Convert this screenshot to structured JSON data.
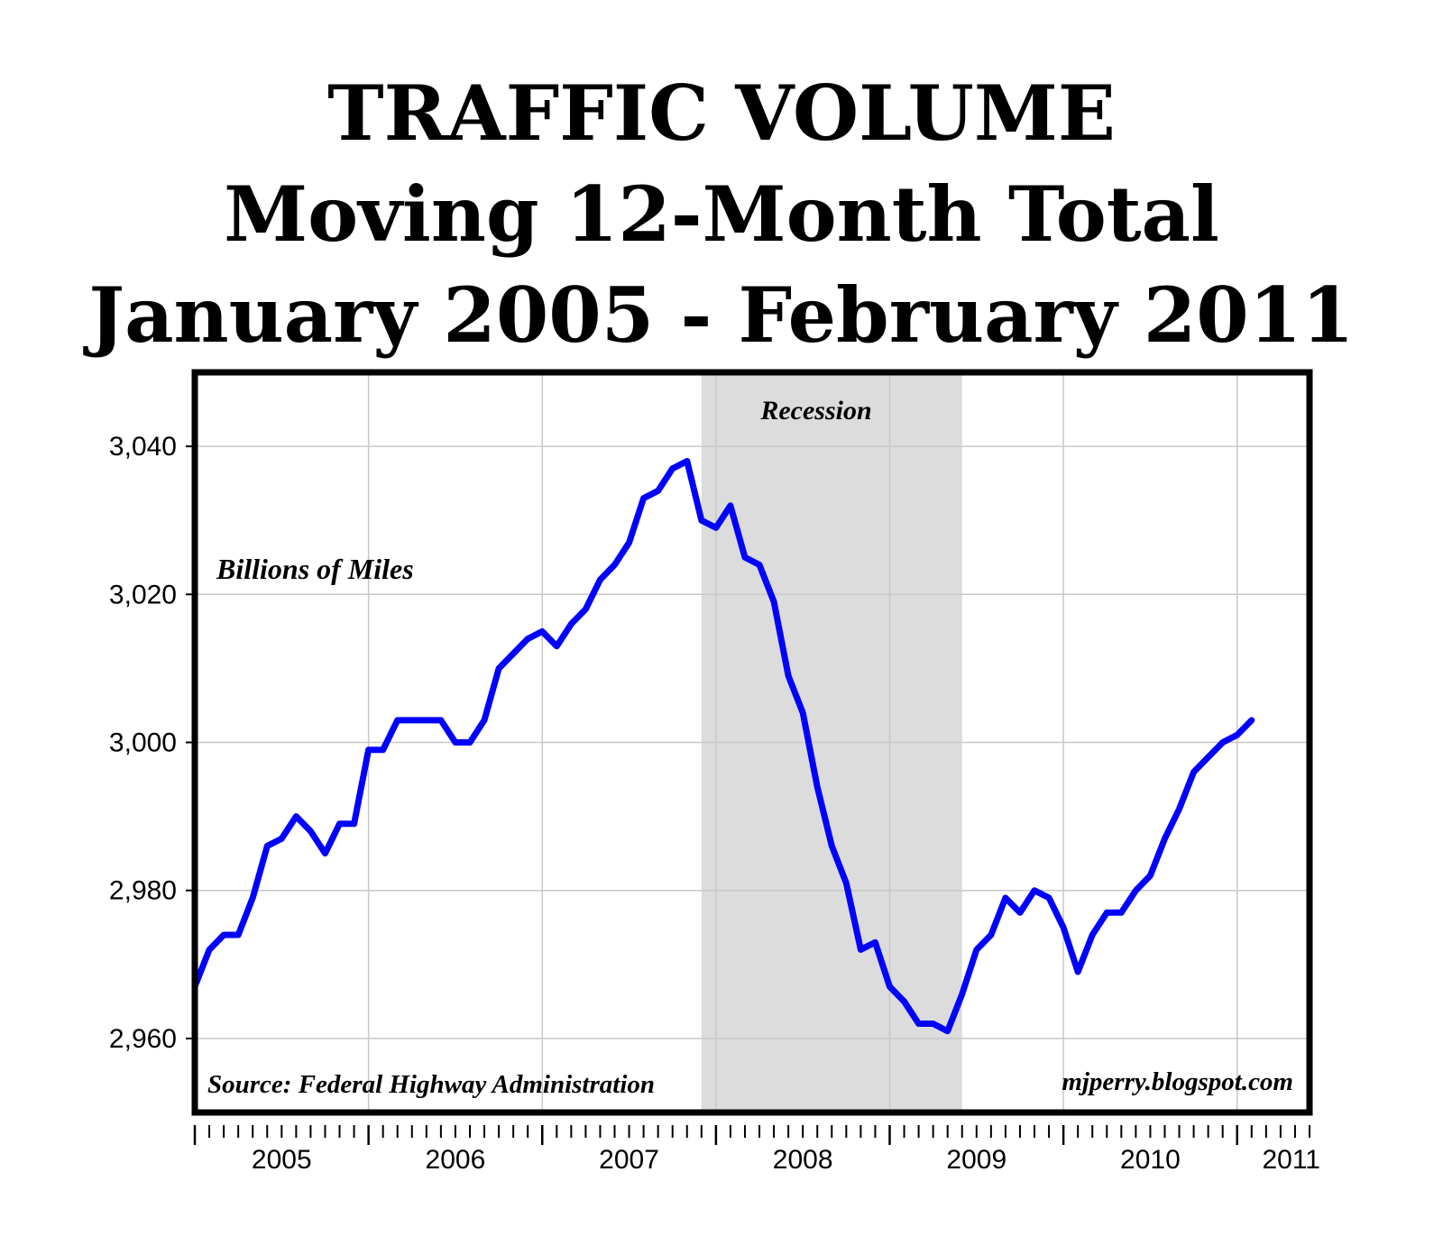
{
  "title_lines": [
    "TRAFFIC  VOLUME",
    "Moving 12-Month Total",
    "January 2005 - February 2011"
  ],
  "annotations": {
    "units": "Billions of Miles",
    "shaded_region_label": "Recession",
    "source": "Source: Federal Highway Administration",
    "credit": "mjperry.blogspot.com"
  },
  "chart_data": {
    "type": "line",
    "title": "TRAFFIC  VOLUME Moving 12-Month Total January 2005 - February 2011",
    "ylabel": "Billions of Miles",
    "xlabel": "",
    "ylim": [
      2950,
      3050
    ],
    "yticks": [
      2960,
      2980,
      3000,
      3020,
      3040
    ],
    "ytick_labels": [
      "2,960",
      "2,980",
      "3,000",
      "3,020",
      "3,040"
    ],
    "xlim": [
      "2005-01",
      "2011-06"
    ],
    "xtick_labels": [
      "2005",
      "2006",
      "2007",
      "2008",
      "2009",
      "2010",
      "2011"
    ],
    "grid": true,
    "legend": "none",
    "shaded_region": {
      "label": "Recession",
      "start": "2007-12",
      "end": "2009-06",
      "color": "#dcdcdc"
    },
    "series": [
      {
        "color": "#0000ff",
        "x": [
          "2005-01",
          "2005-02",
          "2005-03",
          "2005-04",
          "2005-05",
          "2005-06",
          "2005-07",
          "2005-08",
          "2005-09",
          "2005-10",
          "2005-11",
          "2005-12",
          "2006-01",
          "2006-02",
          "2006-03",
          "2006-04",
          "2006-05",
          "2006-06",
          "2006-07",
          "2006-08",
          "2006-09",
          "2006-10",
          "2006-11",
          "2006-12",
          "2007-01",
          "2007-02",
          "2007-03",
          "2007-04",
          "2007-05",
          "2007-06",
          "2007-07",
          "2007-08",
          "2007-09",
          "2007-10",
          "2007-11",
          "2007-12",
          "2008-01",
          "2008-02",
          "2008-03",
          "2008-04",
          "2008-05",
          "2008-06",
          "2008-07",
          "2008-08",
          "2008-09",
          "2008-10",
          "2008-11",
          "2008-12",
          "2009-01",
          "2009-02",
          "2009-03",
          "2009-04",
          "2009-05",
          "2009-06",
          "2009-07",
          "2009-08",
          "2009-09",
          "2009-10",
          "2009-11",
          "2009-12",
          "2010-01",
          "2010-02",
          "2010-03",
          "2010-04",
          "2010-05",
          "2010-06",
          "2010-07",
          "2010-08",
          "2010-09",
          "2010-10",
          "2010-11",
          "2010-12",
          "2011-01",
          "2011-02"
        ],
        "values": [
          2967,
          2972,
          2974,
          2974,
          2979,
          2986,
          2987,
          2990,
          2988,
          2985,
          2989,
          2989,
          2999,
          2999,
          3003,
          3003,
          3003,
          3003,
          3000,
          3000,
          3003,
          3010,
          3012,
          3014,
          3015,
          3013,
          3016,
          3018,
          3022,
          3024,
          3027,
          3033,
          3034,
          3037,
          3038,
          3030,
          3029,
          3032,
          3025,
          3024,
          3019,
          3009,
          3004,
          2994,
          2986,
          2981,
          2972,
          2973,
          2967,
          2965,
          2962,
          2962,
          2961,
          2966,
          2972,
          2974,
          2979,
          2977,
          2980,
          2979,
          2975,
          2969,
          2974,
          2977,
          2977,
          2980,
          2982,
          2987,
          2991,
          2996,
          2998,
          3000,
          3001,
          3003
        ]
      }
    ]
  }
}
